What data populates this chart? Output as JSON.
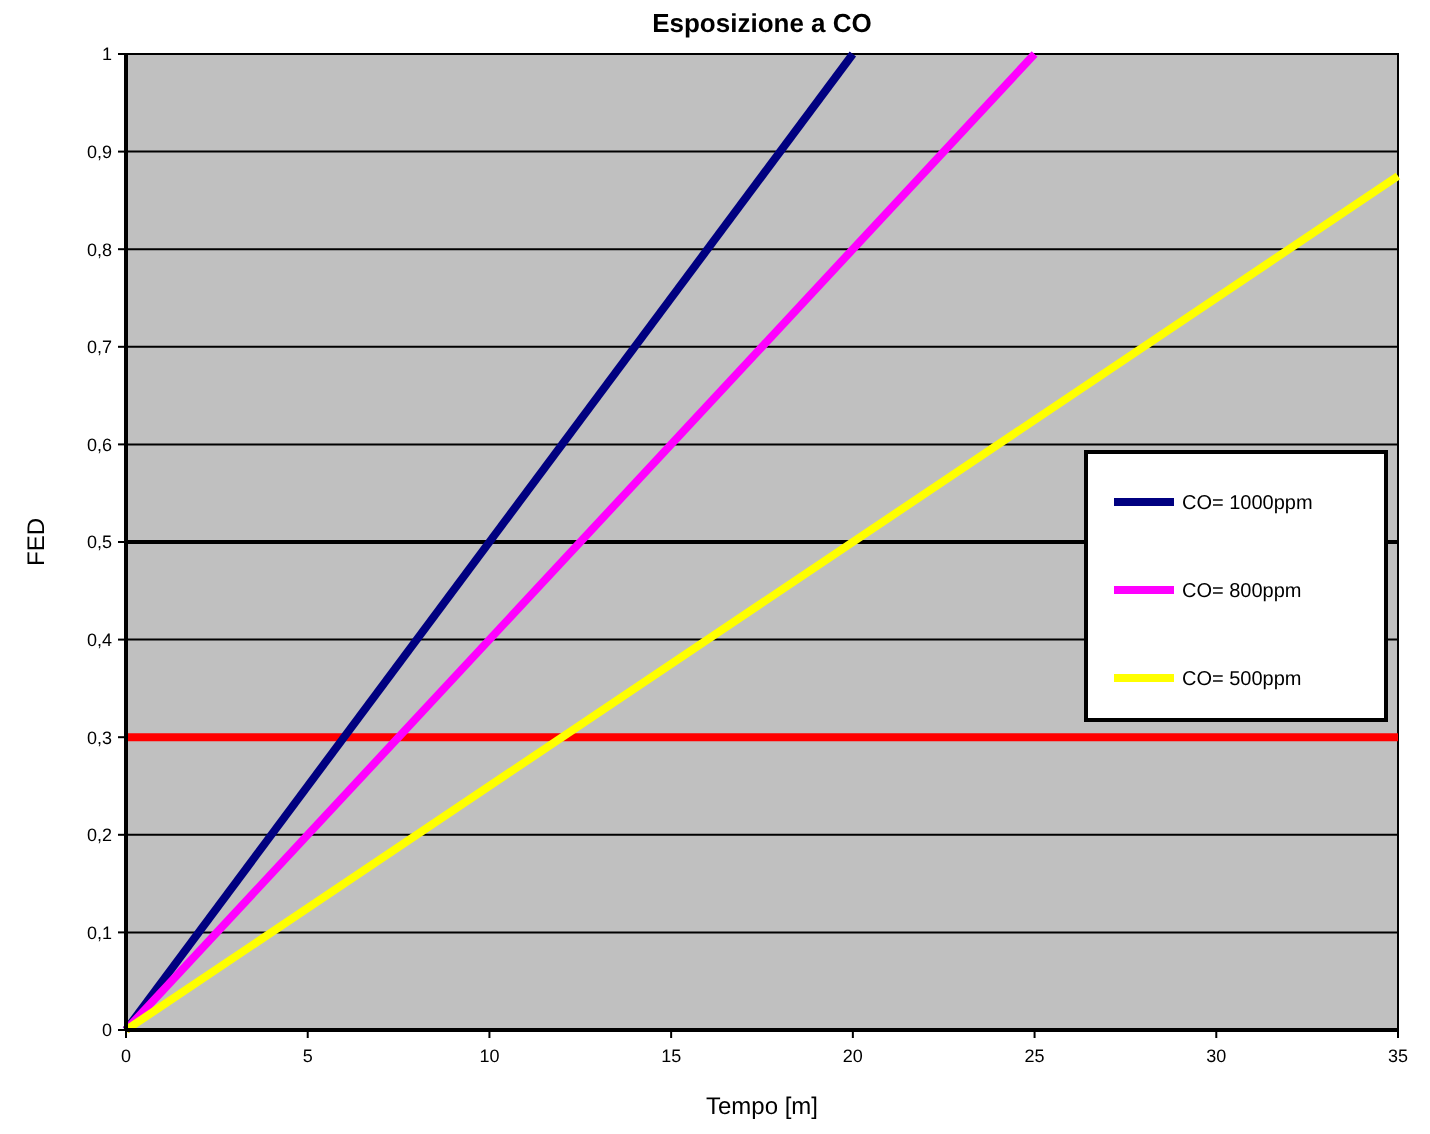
{
  "chart_data": {
    "type": "line",
    "title": "Esposizione a CO",
    "xlabel": "Tempo [m]",
    "ylabel": "FED",
    "xlim": [
      0,
      35
    ],
    "xticks": [
      0,
      5,
      10,
      15,
      20,
      25,
      30,
      35
    ],
    "ylim": [
      0,
      1
    ],
    "yticks": [
      {
        "value": 0,
        "label": "0"
      },
      {
        "value": 0.1,
        "label": "0,1"
      },
      {
        "value": 0.2,
        "label": "0,2"
      },
      {
        "value": 0.3,
        "label": "0,3"
      },
      {
        "value": 0.4,
        "label": "0,4"
      },
      {
        "value": 0.5,
        "label": "0,5"
      },
      {
        "value": 0.6,
        "label": "0,6"
      },
      {
        "value": 0.7,
        "label": "0,7"
      },
      {
        "value": 0.8,
        "label": "0,8"
      },
      {
        "value": 0.9,
        "label": "0,9"
      },
      {
        "value": 1,
        "label": "1"
      }
    ],
    "grid": "y",
    "legend": "right",
    "marker": "none",
    "line_style": "solid",
    "series": [
      {
        "name": "CO= 1000ppm",
        "color": "#000080",
        "x": [
          0,
          20
        ],
        "values": [
          0,
          1
        ]
      },
      {
        "name": "CO= 800ppm",
        "color": "#ff00ff",
        "x": [
          0,
          25
        ],
        "values": [
          0,
          1
        ]
      },
      {
        "name": "CO= 500ppm",
        "color": "#ffff00",
        "x": [
          0,
          35
        ],
        "values": [
          0,
          0.875
        ]
      }
    ],
    "ref_lines": [
      {
        "axis": "y",
        "value": 0.3,
        "color": "#ff0000"
      },
      {
        "axis": "y",
        "value": 0.5,
        "color": "#000000"
      }
    ]
  }
}
